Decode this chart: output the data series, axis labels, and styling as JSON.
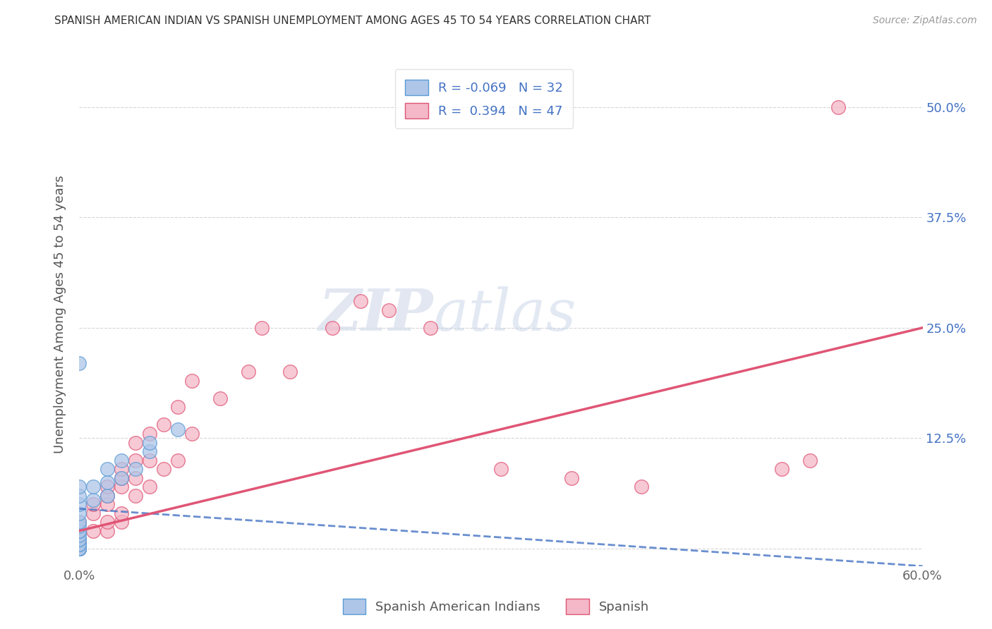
{
  "title": "SPANISH AMERICAN INDIAN VS SPANISH UNEMPLOYMENT AMONG AGES 45 TO 54 YEARS CORRELATION CHART",
  "source": "Source: ZipAtlas.com",
  "ylabel": "Unemployment Among Ages 45 to 54 years",
  "xlim": [
    0.0,
    0.6
  ],
  "ylim": [
    -0.02,
    0.55
  ],
  "blue_color": "#aec6e8",
  "pink_color": "#f4b8c8",
  "blue_edge_color": "#5b9bd5",
  "pink_edge_color": "#e05575",
  "blue_line_color": "#4472c4",
  "pink_line_color": "#e05575",
  "watermark_zip": "ZIP",
  "watermark_atlas": "atlas",
  "blue_scatter_x": [
    0.0,
    0.0,
    0.0,
    0.0,
    0.0,
    0.0,
    0.0,
    0.0,
    0.0,
    0.0,
    0.0,
    0.0,
    0.0,
    0.0,
    0.0,
    0.0,
    0.0,
    0.0,
    0.0,
    0.0,
    0.01,
    0.01,
    0.02,
    0.02,
    0.02,
    0.03,
    0.03,
    0.04,
    0.05,
    0.05,
    0.07,
    0.0
  ],
  "blue_scatter_y": [
    0.0,
    0.0,
    0.0,
    0.0,
    0.0,
    0.0,
    0.0,
    0.005,
    0.005,
    0.01,
    0.01,
    0.015,
    0.02,
    0.02,
    0.025,
    0.03,
    0.04,
    0.05,
    0.06,
    0.07,
    0.055,
    0.07,
    0.06,
    0.075,
    0.09,
    0.08,
    0.1,
    0.09,
    0.11,
    0.12,
    0.135,
    0.21
  ],
  "pink_scatter_x": [
    0.0,
    0.0,
    0.0,
    0.0,
    0.0,
    0.0,
    0.0,
    0.01,
    0.01,
    0.01,
    0.02,
    0.02,
    0.02,
    0.02,
    0.02,
    0.03,
    0.03,
    0.03,
    0.03,
    0.03,
    0.04,
    0.04,
    0.04,
    0.04,
    0.05,
    0.05,
    0.05,
    0.06,
    0.06,
    0.07,
    0.07,
    0.08,
    0.08,
    0.1,
    0.12,
    0.13,
    0.15,
    0.18,
    0.2,
    0.22,
    0.25,
    0.3,
    0.35,
    0.4,
    0.5,
    0.52,
    0.54
  ],
  "pink_scatter_y": [
    0.0,
    0.0,
    0.0,
    0.005,
    0.01,
    0.02,
    0.03,
    0.02,
    0.04,
    0.05,
    0.02,
    0.03,
    0.05,
    0.06,
    0.07,
    0.03,
    0.04,
    0.07,
    0.08,
    0.09,
    0.06,
    0.08,
    0.1,
    0.12,
    0.07,
    0.1,
    0.13,
    0.09,
    0.14,
    0.1,
    0.16,
    0.13,
    0.19,
    0.17,
    0.2,
    0.25,
    0.2,
    0.25,
    0.28,
    0.27,
    0.25,
    0.09,
    0.08,
    0.07,
    0.09,
    0.1,
    0.5
  ],
  "blue_line_x": [
    0.0,
    0.6
  ],
  "blue_line_y": [
    0.045,
    -0.02
  ],
  "pink_line_x": [
    0.0,
    0.6
  ],
  "pink_line_y": [
    0.02,
    0.25
  ],
  "background_color": "#ffffff",
  "grid_color": "#cccccc",
  "ytick_right_vals": [
    0.0,
    0.125,
    0.25,
    0.375,
    0.5
  ],
  "ytick_right_labels": [
    "",
    "12.5%",
    "25.0%",
    "37.5%",
    "50.0%"
  ]
}
